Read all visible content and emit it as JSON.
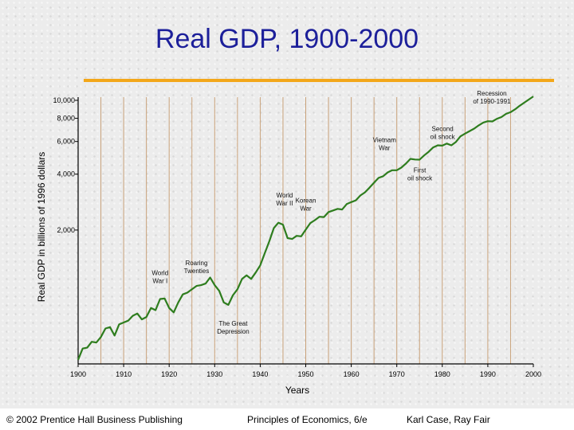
{
  "slide": {
    "title": "Real GDP, 1900-2000"
  },
  "colors": {
    "title": "#1c1f9a",
    "accent_rule": "#f3a71a",
    "series_line": "#2e7d1e",
    "gridline": "#c9a27a"
  },
  "chart_data": {
    "type": "line",
    "xlabel": "Years",
    "ylabel": "Real GDP in billions of 1996 dollars",
    "xlim": [
      1900,
      2000
    ],
    "ylim": [
      380,
      10000
    ],
    "yscale": "log",
    "xticks": [
      1900,
      1910,
      1920,
      1930,
      1940,
      1950,
      1960,
      1970,
      1980,
      1990,
      2000
    ],
    "yticks": [
      {
        "value": 2000,
        "label": "2,000"
      },
      {
        "value": 4000,
        "label": "4,000"
      },
      {
        "value": 6000,
        "label": "6,000"
      },
      {
        "value": 8000,
        "label": "8,000"
      },
      {
        "value": 10000,
        "label": "10,000"
      }
    ],
    "vertical_gridlines": [
      1905,
      1910,
      1915,
      1920,
      1925,
      1930,
      1935,
      1940,
      1945,
      1950,
      1955,
      1960,
      1965,
      1970,
      1975,
      1980,
      1985,
      1990,
      1995
    ],
    "series": [
      {
        "x": [
          1900,
          1901,
          1902,
          1903,
          1904,
          1905,
          1906,
          1907,
          1908,
          1909,
          1910,
          1911,
          1912,
          1913,
          1914,
          1915,
          1916,
          1917,
          1918,
          1919,
          1920,
          1921,
          1922,
          1923,
          1924,
          1925,
          1926,
          1927,
          1928,
          1929,
          1930,
          1931,
          1932,
          1933,
          1934,
          1935,
          1936,
          1937,
          1938,
          1939,
          1940,
          1941,
          1942,
          1943,
          1944,
          1945,
          1946,
          1947,
          1948,
          1949,
          1950,
          1951,
          1952,
          1953,
          1954,
          1955,
          1956,
          1957,
          1958,
          1959,
          1960,
          1961,
          1962,
          1963,
          1964,
          1965,
          1966,
          1967,
          1968,
          1969,
          1970,
          1971,
          1972,
          1973,
          1974,
          1975,
          1976,
          1977,
          1978,
          1979,
          1980,
          1981,
          1982,
          1983,
          1984,
          1985,
          1986,
          1987,
          1988,
          1989,
          1990,
          1991,
          1992,
          1993,
          1994,
          1995,
          1996,
          1997,
          1998,
          1999,
          2000
        ],
        "values": [
          400,
          460,
          465,
          500,
          495,
          530,
          590,
          600,
          540,
          620,
          635,
          650,
          690,
          710,
          660,
          680,
          760,
          740,
          850,
          855,
          760,
          720,
          815,
          900,
          920,
          960,
          1000,
          1010,
          1030,
          1110,
          1010,
          940,
          815,
          790,
          890,
          960,
          1090,
          1140,
          1090,
          1180,
          1290,
          1500,
          1740,
          2050,
          2190,
          2140,
          1810,
          1790,
          1860,
          1850,
          2010,
          2180,
          2260,
          2360,
          2350,
          2500,
          2550,
          2600,
          2580,
          2760,
          2830,
          2890,
          3070,
          3190,
          3380,
          3600,
          3820,
          3900,
          4090,
          4200,
          4200,
          4340,
          4560,
          4840,
          4800,
          4790,
          5050,
          5280,
          5580,
          5720,
          5700,
          5850,
          5720,
          5970,
          6400,
          6620,
          6830,
          7040,
          7330,
          7590,
          7720,
          7700,
          7950,
          8130,
          8450,
          8630,
          8950,
          9350,
          9720,
          10100,
          10500
        ]
      }
    ],
    "annotations": [
      {
        "lines": [
          "World",
          "War I"
        ],
        "x": 1918
      },
      {
        "lines": [
          "Roaring",
          "Twenties"
        ],
        "x": 1926
      },
      {
        "lines": [
          "The Great",
          "Depression"
        ],
        "x": 1933
      },
      {
        "lines": [
          "World",
          "War II"
        ],
        "x": 1945
      },
      {
        "lines": [
          "Korean",
          "War"
        ],
        "x": 1950
      },
      {
        "lines": [
          "Vietnam",
          "War"
        ],
        "x": 1968
      },
      {
        "lines": [
          "First",
          "oil shock"
        ],
        "x": 1974
      },
      {
        "lines": [
          "Second",
          "oil shock"
        ],
        "x": 1979
      },
      {
        "lines": [
          "Recession",
          "of 1990-1991"
        ],
        "x": 1990
      }
    ]
  },
  "footer": {
    "copyright": "© 2002 Prentice Hall Business Publishing",
    "book": "Principles of Economics, 6/e",
    "authors": "Karl Case, Ray Fair"
  }
}
